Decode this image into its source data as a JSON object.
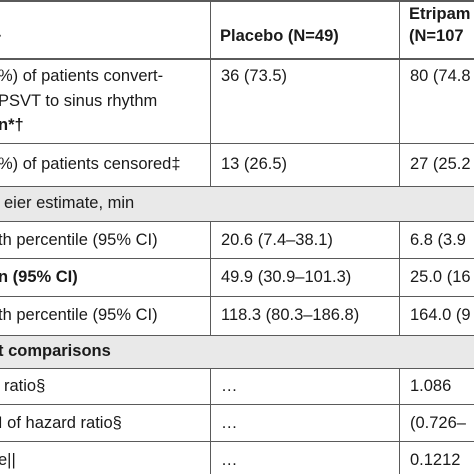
{
  "header": {
    "col1_label": "",
    "col1_fragment": "›",
    "col2_label": "Placebo (N=49)",
    "col3_line1": "Etripam",
    "col3_line2": "(N=107"
  },
  "rows": {
    "converted": {
      "label_line1": "%) of patients convert-",
      "label_line2": "PSVT to sinus rhythm",
      "label_line3": "n*†",
      "placebo": "36 (73.5)",
      "etripamil": "80 (74.8"
    },
    "censored": {
      "label": "%) of patients censored‡",
      "placebo": "13 (26.5)",
      "etripamil": "27 (25.2"
    },
    "km_section": {
      "label": "eier estimate, min"
    },
    "p25": {
      "label": "th percentile (95% CI)",
      "placebo": "20.6 (7.4–38.1)",
      "etripamil": "6.8 (3.9"
    },
    "median": {
      "label": "n (95% CI)",
      "placebo": "49.9 (30.9–101.3)",
      "etripamil": "25.0 (16"
    },
    "p75": {
      "label": "th percentile (95% CI)",
      "placebo": "118.3 (80.3–186.8)",
      "etripamil": "164.0 (9"
    },
    "comparisons_section": {
      "label": "t comparisons"
    },
    "hazard_ratio": {
      "label": "ratio§",
      "placebo": "…",
      "etripamil": "1.086"
    },
    "hr_ci": {
      "label": "I of hazard ratio§",
      "placebo": "…",
      "etripamil": "(0.726–"
    },
    "p_value": {
      "label": "e||",
      "placebo": "…",
      "etripamil": "0.1212"
    }
  }
}
